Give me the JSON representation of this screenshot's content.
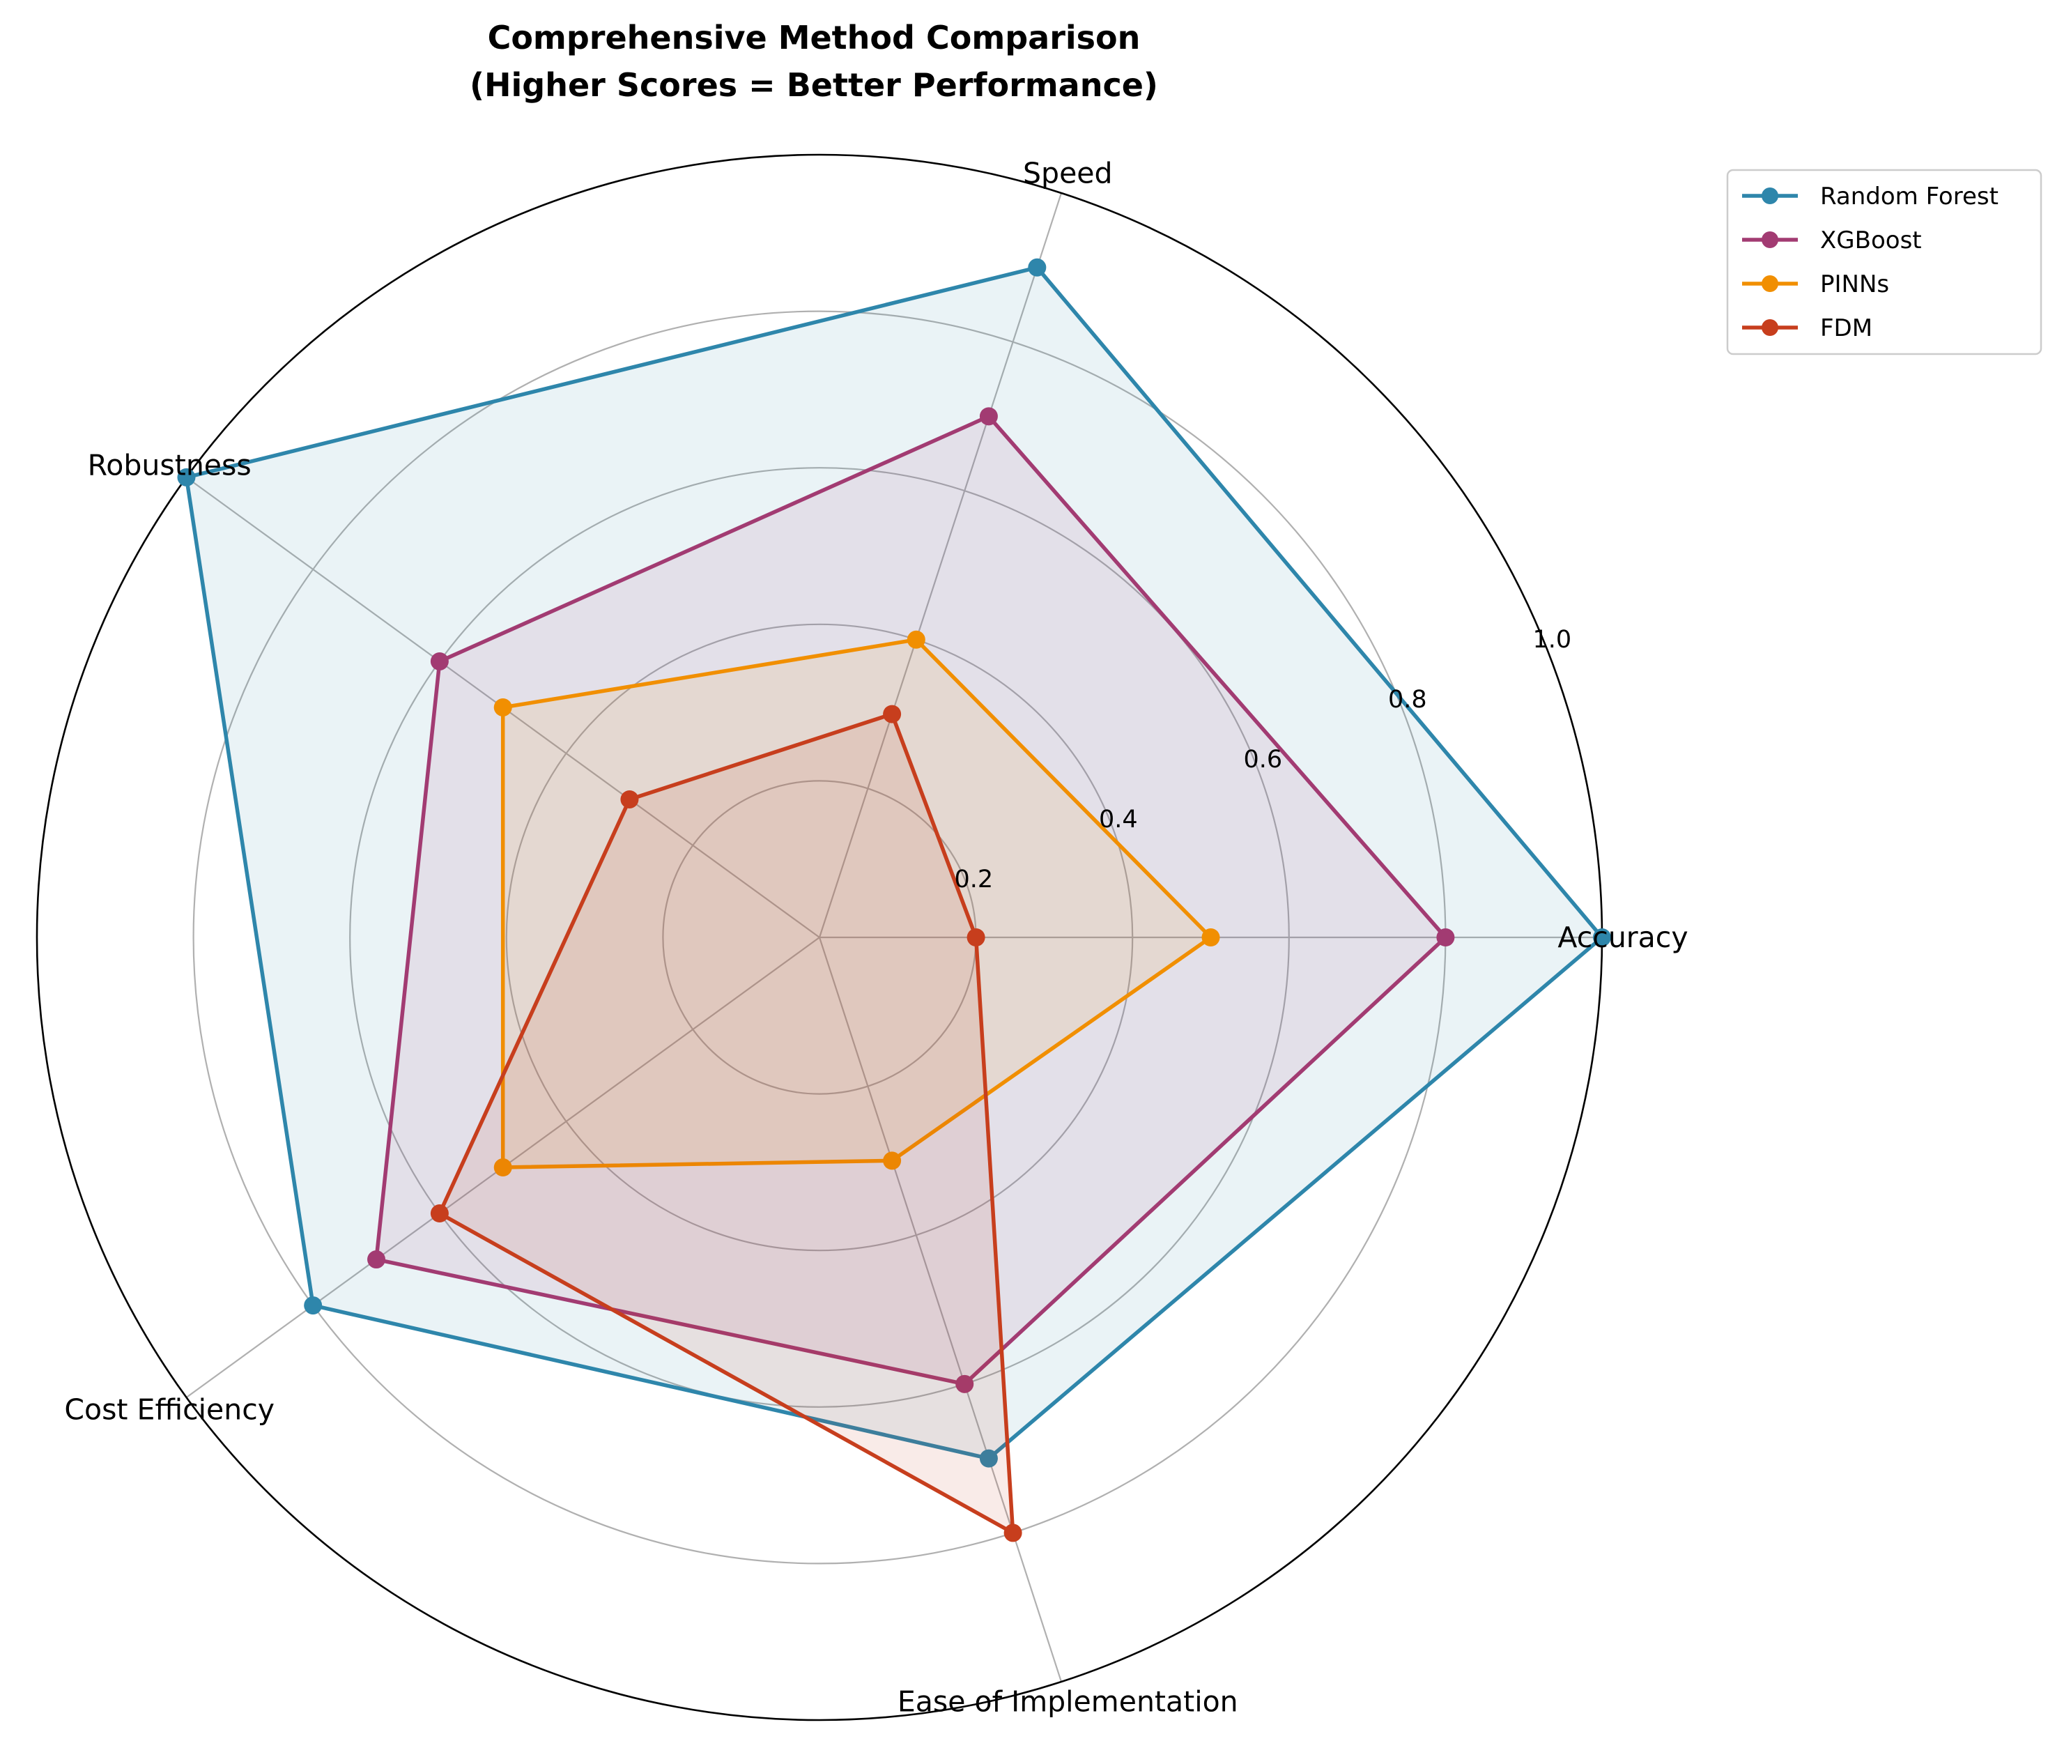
{
  "chart_data": {
    "type": "radar",
    "title": "Comprehensive Method Comparison\n(Higher Scores = Better Performance)",
    "axes": [
      "Accuracy",
      "Speed",
      "Robustness",
      "Cost Efficiency",
      "Ease of Implementation"
    ],
    "rlim": [
      0,
      1.0
    ],
    "rticks": [
      0.2,
      0.4,
      0.6,
      0.8,
      1.0
    ],
    "rtick_labels": [
      "0.2",
      "0.4",
      "0.6",
      "0.8",
      "1.0"
    ],
    "grid": true,
    "legend_position": "upper-right outside",
    "series": [
      {
        "name": "Random Forest",
        "color": "#2e86ab",
        "values": [
          1.0,
          0.9,
          1.0,
          0.8,
          0.7
        ]
      },
      {
        "name": "XGBoost",
        "color": "#a23b72",
        "values": [
          0.8,
          0.7,
          0.6,
          0.7,
          0.6
        ]
      },
      {
        "name": "PINNs",
        "color": "#f18f01",
        "values": [
          0.5,
          0.4,
          0.5,
          0.5,
          0.3
        ]
      },
      {
        "name": "FDM",
        "color": "#c73e1d",
        "values": [
          0.2,
          0.3,
          0.3,
          0.6,
          0.8
        ]
      }
    ]
  }
}
